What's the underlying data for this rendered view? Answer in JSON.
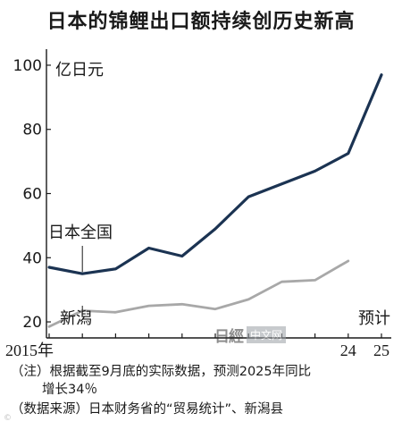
{
  "title": "日本的锦鲤出口额持续创历史新高",
  "unit_label": "亿日元",
  "notes": {
    "line1": "（注）根据截至9月底的实际数据，预测2025年同比",
    "line2": "增长34％",
    "line3": "（数据来源）日本财务省的“贸易统计”、新潟县"
  },
  "watermark": {
    "logo": "日經",
    "text": "中文网"
  },
  "corner_mark": "©",
  "colors": {
    "japan": "#1b3352",
    "niigata": "#a8a8a8",
    "axis": "#1a1a1a"
  },
  "chart_data": {
    "type": "line",
    "title": "日本的锦鲤出口额持续创历史新高",
    "ylabel": "亿日元",
    "ylim": [
      15,
      105
    ],
    "yticks": [
      20,
      40,
      60,
      80,
      100
    ],
    "x": [
      2015,
      2016,
      2017,
      2018,
      2019,
      2020,
      2021,
      2022,
      2023,
      2024,
      2025
    ],
    "xtick_labels": [
      {
        "x": 2015,
        "label": "2015年"
      },
      {
        "x": 2024,
        "label": "24"
      },
      {
        "x": 2025,
        "label": "25"
      }
    ],
    "forecast_label": "预计",
    "series": [
      {
        "name": "日本全国",
        "color": "#1b3352",
        "values": [
          37,
          35,
          36.5,
          43,
          40.5,
          49,
          59,
          63,
          67,
          72.5,
          97
        ]
      },
      {
        "name": "新潟",
        "color": "#a8a8a8",
        "values": [
          18.5,
          23.5,
          23,
          25,
          25.5,
          24,
          27,
          32.5,
          33,
          39,
          null
        ]
      }
    ]
  }
}
